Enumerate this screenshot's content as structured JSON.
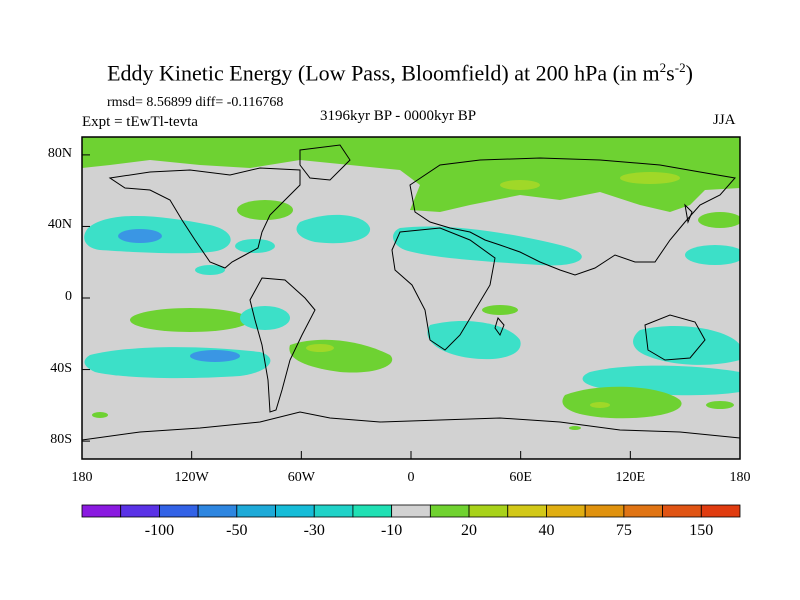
{
  "title": {
    "main": "Eddy Kinetic Energy (Low Pass, Bloomfield) at 200 hPa (in m",
    "exp1": "2",
    "mid": "s",
    "exp2": "-2",
    "close": ")"
  },
  "stats": {
    "rmsd_line": "rmsd= 8.56899 diff= -0.116768",
    "expt_line": "Expt = tEwTl-tevta"
  },
  "period": "3196kyr BP - 0000kyr BP",
  "season": "JJA",
  "axes": {
    "lat_ticks": [
      {
        "value": 80,
        "label": "80N"
      },
      {
        "value": 40,
        "label": "40N"
      },
      {
        "value": 0,
        "label": "0"
      },
      {
        "value": -40,
        "label": "40S"
      },
      {
        "value": -80,
        "label": "80S"
      }
    ],
    "lon_ticks": [
      {
        "value": -180,
        "label": "180"
      },
      {
        "value": -120,
        "label": "120W"
      },
      {
        "value": -60,
        "label": "60W"
      },
      {
        "value": 0,
        "label": "0"
      },
      {
        "value": 60,
        "label": "60E"
      },
      {
        "value": 120,
        "label": "120E"
      },
      {
        "value": 180,
        "label": "180"
      }
    ]
  },
  "colorbar": {
    "colors": [
      "#8a1ae0",
      "#5a32e6",
      "#3262e6",
      "#2e86e0",
      "#1eaad8",
      "#16bcd8",
      "#20d2c8",
      "#20e0b4",
      "#d2d2d2",
      "#70d230",
      "#a8d21a",
      "#d2c818",
      "#e0ae12",
      "#e0920e",
      "#e07414",
      "#e05414",
      "#e03c10"
    ],
    "labels": [
      "-100",
      "-50",
      "-30",
      "-10",
      "20",
      "40",
      "75",
      "150"
    ]
  },
  "colors": {
    "cyan_light": "#3ce0c8",
    "cyan": "#1ecad8",
    "blue": "#3a96e4",
    "green": "#6ed232",
    "lightgreen": "#a0d828",
    "land_line": "#000000",
    "background": "#d2d2d2"
  }
}
